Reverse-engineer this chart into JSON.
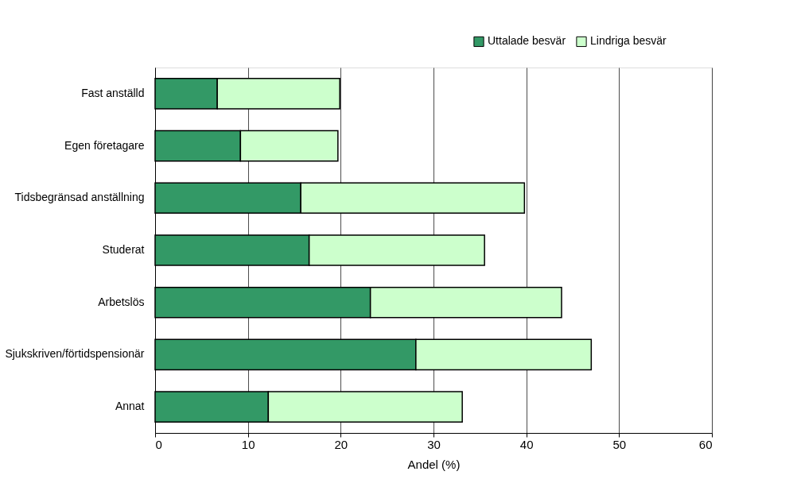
{
  "chart_data": {
    "type": "bar",
    "orientation": "horizontal",
    "stacked": true,
    "xlabel": "Andel (%)",
    "categories": [
      "Fast anställd",
      "Egen företagare",
      "Tidsbegränsad anställning",
      "Studerat",
      "Arbetslös",
      "Sjukskriven/förtidspensionär",
      "Annat"
    ],
    "series": [
      {
        "name": "Uttalade besvär",
        "color": "#339966",
        "values": [
          6.7,
          9.2,
          15.7,
          16.6,
          23.2,
          28.1,
          12.2
        ]
      },
      {
        "name": "Lindriga besvär",
        "color": "#ccffcc",
        "values": [
          13.2,
          10.5,
          24.1,
          18.9,
          20.6,
          18.9,
          20.9
        ]
      }
    ],
    "xlim": [
      0,
      60
    ],
    "xticks": [
      0,
      10,
      20,
      30,
      40,
      50,
      60
    ],
    "grid": "x",
    "legend": "top right"
  }
}
